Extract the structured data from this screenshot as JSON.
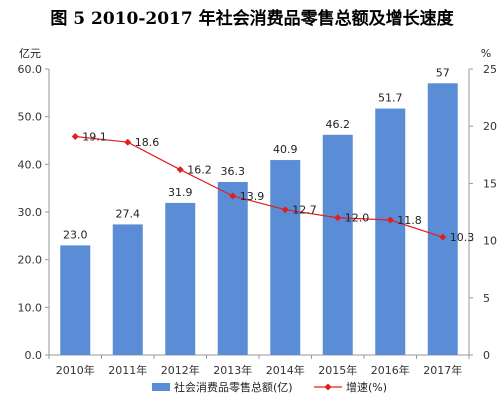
{
  "title": "图 5    2010-2017 年社会消费品零售总额及增长速度",
  "chart_data": {
    "type": "bar",
    "title": "图 5    2010-2017 年社会消费品零售总额及增长速度",
    "categories": [
      "2010年",
      "2011年",
      "2012年",
      "2013年",
      "2014年",
      "2015年",
      "2016年",
      "2017年"
    ],
    "series": [
      {
        "name": "社会消费品零售总额(亿)",
        "type": "bar",
        "axis": "left",
        "color": "#5B8DD6",
        "values": [
          23.0,
          27.4,
          31.9,
          36.3,
          40.9,
          46.2,
          51.7,
          57
        ],
        "labels": [
          "23.0",
          "27.4",
          "31.9",
          "36.3",
          "40.9",
          "46.2",
          "51.7",
          "57"
        ]
      },
      {
        "name": "增速(%)",
        "type": "line",
        "axis": "right",
        "color": "#E02020",
        "values": [
          19.1,
          18.6,
          16.2,
          13.9,
          12.7,
          12.0,
          11.8,
          10.3
        ],
        "labels": [
          "19.1",
          "18.6",
          "16.2",
          "13.9",
          "12.7",
          "12.0",
          "11.8",
          "10.3"
        ]
      }
    ],
    "ylabel_left": "亿元",
    "ylabel_right": "%",
    "ylim_left": [
      0,
      60
    ],
    "ylim_right": [
      0,
      25
    ],
    "yticks_left": [
      "0.0",
      "10.0",
      "20.0",
      "30.0",
      "40.0",
      "50.0",
      "60.0"
    ],
    "yticks_right": [
      "0",
      "5",
      "10",
      "15",
      "20",
      "25"
    ],
    "grid": false,
    "legend_position": "bottom"
  }
}
